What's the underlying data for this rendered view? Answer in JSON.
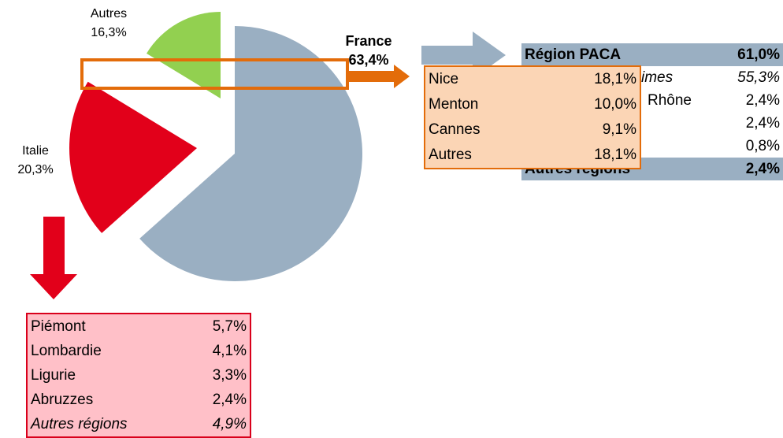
{
  "chart_data": {
    "type": "pie",
    "categories": [
      "France",
      "Italie",
      "Autres"
    ],
    "values": [
      63.4,
      20.3,
      16.3
    ],
    "value_labels": [
      "63,4%",
      "20,3%",
      "16,3%"
    ],
    "colors": [
      "#9aafc2",
      "#e2001a",
      "#92d050"
    ]
  },
  "tables": {
    "paca": {
      "rows": [
        {
          "label": "Région PACA",
          "value": "61,0%"
        },
        {
          "label": "imes",
          "value": "55,3%"
        },
        {
          "label": "Rhône",
          "value": "2,4%"
        },
        {
          "value": "2,4%"
        },
        {
          "value": "0,8%"
        },
        {
          "label": "Autres régions",
          "value": "2,4%"
        }
      ]
    },
    "paca_detail": {
      "rows": [
        {
          "label": "Nice",
          "value": "18,1%"
        },
        {
          "label": "Menton",
          "value": "10,0%"
        },
        {
          "label": "Cannes",
          "value": "9,1%"
        },
        {
          "label": "Autres",
          "value": "18,1%"
        }
      ]
    },
    "italie": {
      "rows": [
        {
          "label": "Piémont",
          "value": "5,7%"
        },
        {
          "label": "Lombardie",
          "value": "4,1%"
        },
        {
          "label": "Ligurie",
          "value": "3,3%"
        },
        {
          "label": "Abruzzes",
          "value": "2,4%"
        },
        {
          "label": "Autres régions",
          "value": "4,9%"
        }
      ]
    }
  }
}
